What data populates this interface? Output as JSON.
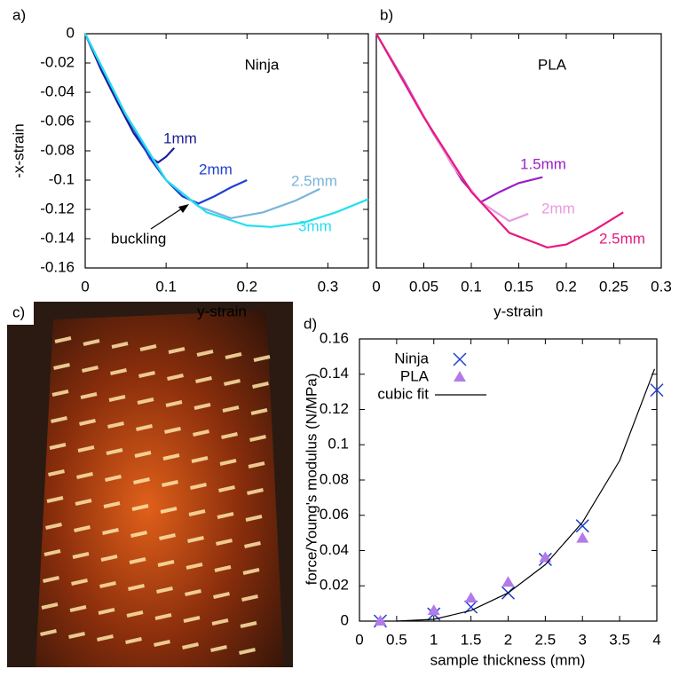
{
  "chart_data": [
    {
      "type": "line",
      "panel_label": "a)",
      "annotation": "Ninja",
      "arrow_label": "buckling",
      "xlabel": "y-strain",
      "ylabel": "-x-strain",
      "xlim": [
        0,
        0.35
      ],
      "ylim": [
        -0.16,
        0
      ],
      "xticks": [
        0,
        0.1,
        0.2,
        0.3
      ],
      "yticks": [
        0,
        -0.02,
        -0.04,
        -0.06,
        -0.08,
        -0.1,
        -0.12,
        -0.14,
        -0.16
      ],
      "series": [
        {
          "name": "1mm",
          "color": "#1c1c96",
          "x": [
            0,
            0.02,
            0.04,
            0.06,
            0.08,
            0.09,
            0.1,
            0.11
          ],
          "values": [
            0,
            -0.025,
            -0.047,
            -0.068,
            -0.084,
            -0.088,
            -0.084,
            -0.078
          ]
        },
        {
          "name": "2mm",
          "color": "#1f3fd0",
          "x": [
            0,
            0.04,
            0.08,
            0.1,
            0.12,
            0.14,
            0.16,
            0.18,
            0.2
          ],
          "values": [
            0,
            -0.045,
            -0.085,
            -0.1,
            -0.111,
            -0.116,
            -0.111,
            -0.105,
            -0.1
          ]
        },
        {
          "name": "2.5mm",
          "color": "#7ab4d8",
          "x": [
            0,
            0.05,
            0.1,
            0.14,
            0.18,
            0.22,
            0.26,
            0.29
          ],
          "values": [
            0,
            -0.055,
            -0.1,
            -0.118,
            -0.126,
            -0.122,
            -0.114,
            -0.106
          ]
        },
        {
          "name": "3mm",
          "color": "#22dff0",
          "x": [
            0,
            0.05,
            0.1,
            0.15,
            0.2,
            0.23,
            0.27,
            0.31,
            0.35
          ],
          "values": [
            0,
            -0.055,
            -0.1,
            -0.122,
            -0.131,
            -0.132,
            -0.129,
            -0.122,
            -0.113
          ]
        }
      ]
    },
    {
      "type": "line",
      "panel_label": "b)",
      "annotation": "PLA",
      "xlabel": "y-strain",
      "xlim": [
        0,
        0.3
      ],
      "ylim": [
        -0.16,
        0
      ],
      "xticks": [
        0,
        0.05,
        0.1,
        0.15,
        0.2,
        0.25,
        0.3
      ],
      "series": [
        {
          "name": "1.5mm",
          "color": "#9b1fc8",
          "x": [
            0,
            0.03,
            0.06,
            0.09,
            0.11,
            0.13,
            0.15,
            0.175
          ],
          "values": [
            0,
            -0.033,
            -0.068,
            -0.1,
            -0.115,
            -0.108,
            -0.102,
            -0.098
          ]
        },
        {
          "name": "2mm",
          "color": "#e89ae0",
          "x": [
            0,
            0.04,
            0.08,
            0.11,
            0.14,
            0.16
          ],
          "values": [
            0,
            -0.045,
            -0.09,
            -0.115,
            -0.128,
            -0.123
          ]
        },
        {
          "name": "2.5mm",
          "color": "#e8177f",
          "x": [
            0,
            0.05,
            0.1,
            0.14,
            0.18,
            0.2,
            0.23,
            0.26
          ],
          "values": [
            0,
            -0.057,
            -0.108,
            -0.136,
            -0.146,
            -0.144,
            -0.134,
            -0.122
          ]
        }
      ]
    },
    {
      "type": "scatter",
      "panel_label": "d)",
      "xlabel": "sample thickness (mm)",
      "ylabel": "force/Young's modulus (N/MPa)",
      "xlim": [
        0,
        4
      ],
      "ylim": [
        0,
        0.16
      ],
      "xticks": [
        0,
        0.5,
        1,
        1.5,
        2,
        2.5,
        3,
        3.5,
        4
      ],
      "yticks": [
        0,
        0.02,
        0.04,
        0.06,
        0.08,
        0.1,
        0.12,
        0.14,
        0.16
      ],
      "series": [
        {
          "name": "Ninja",
          "color": "#1f3fd0",
          "marker": "x",
          "x": [
            0.28,
            1,
            1.5,
            2,
            2.5,
            3,
            4
          ],
          "values": [
            0,
            0.004,
            0.008,
            0.016,
            0.035,
            0.054,
            0.131
          ]
        },
        {
          "name": "PLA",
          "color": "#b27be8",
          "marker": "triangle",
          "x": [
            0.28,
            1,
            1.5,
            2,
            2.5,
            3
          ],
          "values": [
            0,
            0.006,
            0.013,
            0.022,
            0.036,
            0.047
          ]
        },
        {
          "name": "cubic fit",
          "color": "#000000",
          "marker": "line",
          "x": [
            0.5,
            1,
            1.5,
            2,
            2.5,
            3,
            3.5,
            3.97
          ],
          "values": [
            0,
            0.001,
            0.006,
            0.016,
            0.032,
            0.056,
            0.091,
            0.143
          ]
        }
      ]
    }
  ],
  "photo": {
    "label": "c)"
  }
}
